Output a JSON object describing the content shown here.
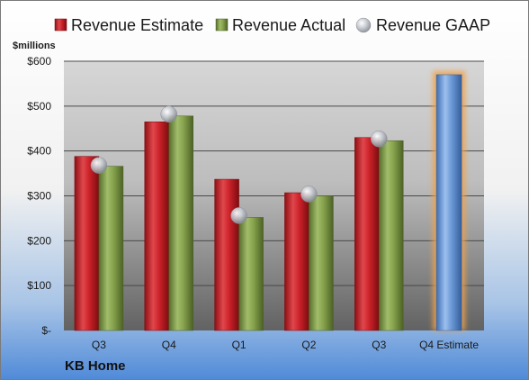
{
  "chart_data": {
    "type": "bar",
    "title": "",
    "unit_label": "$millions",
    "company": "KB Home",
    "categories": [
      "Q3",
      "Q4",
      "Q1",
      "Q2",
      "Q3",
      "Q4 Estimate"
    ],
    "y_ticks": [
      {
        "value": 0,
        "label": "$-"
      },
      {
        "value": 100,
        "label": "$100"
      },
      {
        "value": 200,
        "label": "$200"
      },
      {
        "value": 300,
        "label": "$300"
      },
      {
        "value": 400,
        "label": "$400"
      },
      {
        "value": 500,
        "label": "$500"
      },
      {
        "value": 600,
        "label": "$600"
      }
    ],
    "ylim": [
      0,
      600
    ],
    "grid": true,
    "legend_position": "top",
    "series": [
      {
        "name": "Revenue Estimate",
        "type": "bar",
        "color": "#cc2229",
        "values": [
          388,
          465,
          337,
          307,
          430,
          null
        ]
      },
      {
        "name": "Revenue Actual",
        "type": "bar",
        "color": "#7f9c46",
        "values": [
          366,
          478,
          252,
          300,
          423,
          null
        ]
      },
      {
        "name": "Revenue GAAP",
        "type": "marker",
        "color": "#b8bcc4",
        "values": [
          368,
          482,
          256,
          304,
          427,
          null
        ]
      }
    ],
    "forecast": {
      "category_index": 5,
      "value": 570,
      "color": "#6a98d6",
      "glow_color": "#f0a24a"
    }
  }
}
